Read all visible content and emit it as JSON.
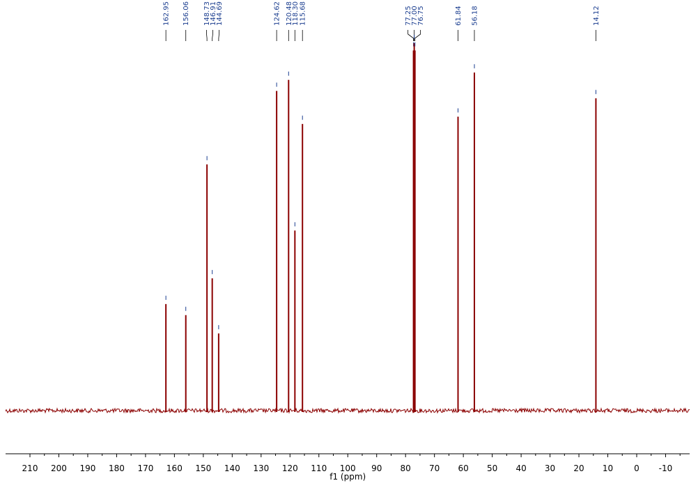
{
  "chart_data": {
    "type": "line",
    "title": "",
    "xlabel": "f1 (ppm)",
    "ylabel": "",
    "xlim": [
      214,
      -18
    ],
    "x_reversed": true,
    "x_ticks": [
      "210",
      "200",
      "190",
      "180",
      "170",
      "160",
      "150",
      "140",
      "130",
      "120",
      "110",
      "100",
      "90",
      "80",
      "70",
      "60",
      "50",
      "40",
      "30",
      "20",
      "10",
      "0",
      "-10"
    ],
    "peak_labels": [
      "162.95",
      "156.06",
      "148.73",
      "146.91",
      "144.69",
      "124.62",
      "120.48",
      "118.30",
      "115.68",
      "77.25",
      "77.00",
      "76.75",
      "61.84",
      "56.18",
      "14.12"
    ],
    "peaks": [
      {
        "ppm": 162.95,
        "intensity": 0.29
      },
      {
        "ppm": 156.06,
        "intensity": 0.26
      },
      {
        "ppm": 148.73,
        "intensity": 0.67
      },
      {
        "ppm": 146.91,
        "intensity": 0.36
      },
      {
        "ppm": 144.69,
        "intensity": 0.21
      },
      {
        "ppm": 124.62,
        "intensity": 0.87
      },
      {
        "ppm": 120.48,
        "intensity": 0.9
      },
      {
        "ppm": 118.3,
        "intensity": 0.49
      },
      {
        "ppm": 115.68,
        "intensity": 0.78
      },
      {
        "ppm": 77.25,
        "intensity": 0.98
      },
      {
        "ppm": 77.0,
        "intensity": 1.0
      },
      {
        "ppm": 76.75,
        "intensity": 0.98
      },
      {
        "ppm": 61.84,
        "intensity": 0.8
      },
      {
        "ppm": 56.18,
        "intensity": 0.92
      },
      {
        "ppm": 14.12,
        "intensity": 0.85
      }
    ],
    "grid": false,
    "colors": {
      "spectrum": "#8b0000",
      "peak_label": "#1a3d8f",
      "axis": "#000000"
    }
  }
}
